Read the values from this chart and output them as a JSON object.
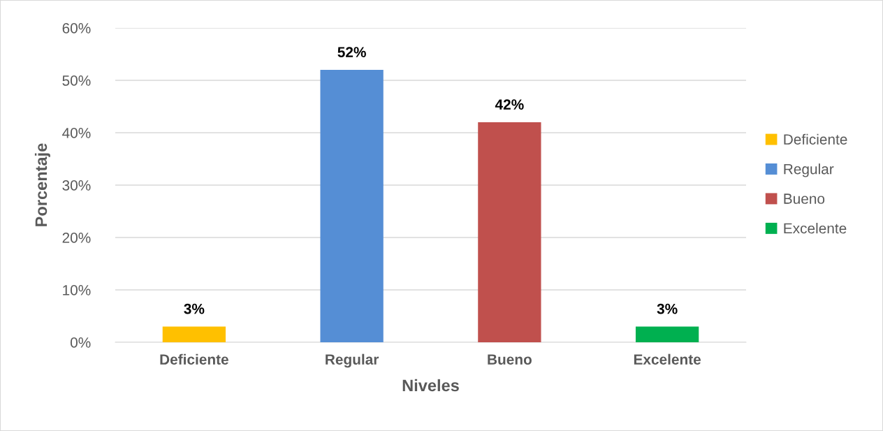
{
  "chart_data": {
    "type": "bar",
    "xlabel": "Niveles",
    "ylabel": "Porcentaje",
    "categories": [
      "Deficiente",
      "Regular",
      "Bueno",
      "Excelente"
    ],
    "series": [
      {
        "name": "Deficiente",
        "color": "#ffc000",
        "values": [
          3,
          null,
          null,
          null
        ],
        "value_labels": [
          "3%",
          null,
          null,
          null
        ]
      },
      {
        "name": "Regular",
        "color": "#558ed5",
        "values": [
          null,
          52,
          null,
          null
        ],
        "value_labels": [
          null,
          "52%",
          null,
          null
        ]
      },
      {
        "name": "Bueno",
        "color": "#c0504d",
        "values": [
          null,
          null,
          42,
          null
        ],
        "value_labels": [
          null,
          null,
          "42%",
          null
        ]
      },
      {
        "name": "Excelente",
        "color": "#00b050",
        "values": [
          null,
          null,
          null,
          3
        ],
        "value_labels": [
          null,
          null,
          null,
          "3%"
        ]
      }
    ],
    "ylim": [
      0,
      60
    ],
    "yticks": [
      {
        "value": 0,
        "label": "0%"
      },
      {
        "value": 10,
        "label": "10%"
      },
      {
        "value": 20,
        "label": "20%"
      },
      {
        "value": 30,
        "label": "30%"
      },
      {
        "value": 40,
        "label": "40%"
      },
      {
        "value": 50,
        "label": "50%"
      },
      {
        "value": 60,
        "label": "60%"
      }
    ],
    "grid": "y",
    "legend": "right"
  }
}
